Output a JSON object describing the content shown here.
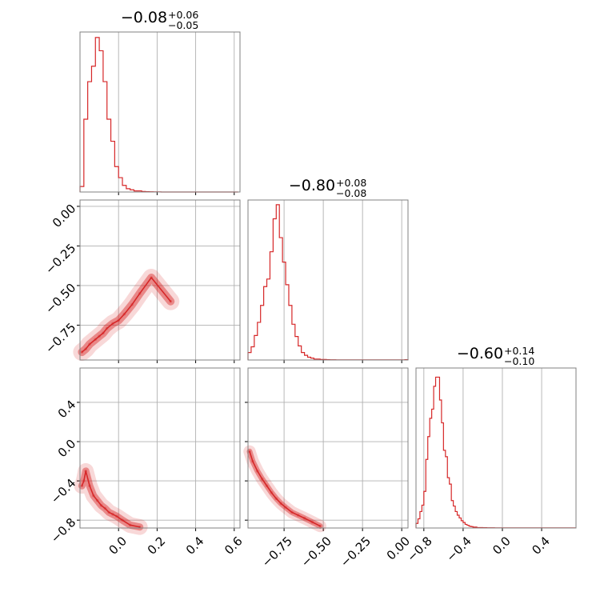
{
  "figure": {
    "type": "corner_plot"
  },
  "colors": {
    "series": "#d62728",
    "grid": "#b0b0b0",
    "spine": "#808080"
  },
  "chart_data": [
    {
      "type": "bar",
      "panel": "hist-0",
      "title": {
        "median": "−0.08",
        "plus": "+0.06",
        "minus": "−0.05"
      },
      "xlim": [
        -0.2,
        0.63
      ],
      "x": [
        -0.19,
        -0.17,
        -0.15,
        -0.13,
        -0.11,
        -0.09,
        -0.07,
        -0.05,
        -0.03,
        -0.01,
        0.01,
        0.03,
        0.05,
        0.07,
        0.09,
        0.11,
        0.13,
        0.15,
        0.17,
        0.19,
        0.21,
        0.23,
        0.25,
        0.27,
        0.29,
        0.31,
        0.33,
        0.35,
        0.37,
        0.39,
        0.41,
        0.43,
        0.45,
        0.47,
        0.49,
        0.51,
        0.53,
        0.55,
        0.57,
        0.59,
        0.61
      ],
      "values": [
        5,
        66,
        100,
        114,
        140,
        128,
        100,
        66,
        46,
        23,
        13,
        6,
        3,
        2,
        1,
        1,
        0.5,
        0.3,
        0.2,
        0.1,
        0.1,
        0,
        0,
        0,
        0,
        0,
        0,
        0,
        0,
        0,
        0,
        0,
        0,
        0,
        0,
        0,
        0,
        0,
        0,
        0,
        0
      ],
      "ylim": [
        0,
        145
      ],
      "grid_x": [
        0.0,
        0.2,
        0.4,
        0.6
      ]
    },
    {
      "type": "scatter",
      "panel": "scatter-1-0",
      "x": [
        -0.19,
        -0.17,
        -0.15,
        -0.12,
        -0.1,
        -0.08,
        -0.06,
        -0.03,
        0.0,
        0.03,
        0.07,
        0.11,
        0.17,
        0.27
      ],
      "y": [
        -0.92,
        -0.9,
        -0.87,
        -0.84,
        -0.82,
        -0.8,
        -0.77,
        -0.74,
        -0.72,
        -0.68,
        -0.62,
        -0.55,
        -0.45,
        -0.6
      ],
      "xlim": [
        -0.2,
        0.63
      ],
      "ylim": [
        -0.97,
        0.04
      ],
      "yticks": [
        "0.00",
        "−0.25",
        "−0.50",
        "−0.75"
      ],
      "ytick_values": [
        0.0,
        -0.25,
        -0.5,
        -0.75
      ]
    },
    {
      "type": "bar",
      "panel": "hist-1",
      "title": {
        "median": "−0.80",
        "plus": "+0.08",
        "minus": "−0.08"
      },
      "xlim": [
        -0.98,
        0.04
      ],
      "x": [
        -0.97,
        -0.95,
        -0.93,
        -0.91,
        -0.89,
        -0.87,
        -0.85,
        -0.83,
        -0.81,
        -0.79,
        -0.77,
        -0.75,
        -0.73,
        -0.71,
        -0.69,
        -0.67,
        -0.65,
        -0.63,
        -0.61,
        -0.59,
        -0.57,
        -0.55,
        -0.53,
        -0.51,
        -0.49,
        -0.47,
        -0.45,
        -0.43,
        -0.41,
        -0.39,
        -0.37,
        -0.35,
        -0.33,
        -0.31,
        -0.29,
        -0.27,
        -0.25,
        -0.23,
        -0.21,
        -0.19,
        -0.17,
        -0.15,
        -0.13,
        -0.11,
        -0.09,
        -0.07,
        -0.05,
        -0.03,
        -0.01,
        0.01,
        0.03
      ],
      "values": [
        8,
        14,
        26,
        40,
        58,
        78,
        86,
        115,
        150,
        165,
        130,
        104,
        80,
        58,
        38,
        25,
        15,
        8,
        5,
        3,
        2,
        1,
        1,
        0.5,
        0.5,
        0.3,
        0.2,
        0.2,
        0.1,
        0.1,
        0.1,
        0.1,
        0.1,
        0.1,
        0.1,
        0.1,
        0.1,
        0.1,
        0.1,
        0.1,
        0.1,
        0.1,
        0.1,
        0.1,
        0.1,
        0.1,
        0.1,
        0.1,
        0.1,
        0.1,
        0.3
      ],
      "ylim": [
        0,
        170
      ],
      "grid_x": [
        -0.75,
        -0.5,
        -0.25,
        0.0
      ]
    },
    {
      "type": "scatter",
      "panel": "scatter-2-0",
      "x": [
        -0.19,
        -0.18,
        -0.17,
        -0.15,
        -0.13,
        -0.11,
        -0.09,
        -0.07,
        -0.05,
        -0.03,
        -0.01,
        0.02,
        0.06,
        0.11
      ],
      "y": [
        -0.45,
        -0.4,
        -0.3,
        -0.45,
        -0.55,
        -0.6,
        -0.65,
        -0.68,
        -0.72,
        -0.74,
        -0.76,
        -0.8,
        -0.85,
        -0.87
      ],
      "xlim": [
        -0.2,
        0.63
      ],
      "ylim": [
        -0.88,
        0.75
      ],
      "xticks": [
        "0.0",
        "0.2",
        "0.4",
        "0.6"
      ],
      "xtick_values": [
        0.0,
        0.2,
        0.4,
        0.6
      ],
      "yticks": [
        "0.4",
        "0.0",
        "−0.4",
        "−0.8"
      ],
      "ytick_values": [
        0.4,
        0.0,
        -0.4,
        -0.8
      ]
    },
    {
      "type": "scatter",
      "panel": "scatter-2-1",
      "x": [
        -0.97,
        -0.95,
        -0.92,
        -0.89,
        -0.86,
        -0.83,
        -0.8,
        -0.77,
        -0.74,
        -0.7,
        -0.66,
        -0.62,
        -0.57,
        -0.52
      ],
      "y": [
        -0.1,
        -0.2,
        -0.3,
        -0.38,
        -0.45,
        -0.52,
        -0.58,
        -0.63,
        -0.67,
        -0.72,
        -0.75,
        -0.78,
        -0.82,
        -0.86
      ],
      "xlim": [
        -0.98,
        0.04
      ],
      "ylim": [
        -0.88,
        0.75
      ],
      "xticks": [
        "−0.75",
        "−0.50",
        "−0.25",
        "0.00"
      ],
      "xtick_values": [
        -0.75,
        -0.5,
        -0.25,
        0.0
      ]
    },
    {
      "type": "bar",
      "panel": "hist-2",
      "title": {
        "median": "−0.60",
        "plus": "+0.14",
        "minus": "−0.10"
      },
      "xlim": [
        -0.88,
        0.75
      ],
      "x": [
        -0.87,
        -0.85,
        -0.83,
        -0.81,
        -0.79,
        -0.77,
        -0.75,
        -0.73,
        -0.71,
        -0.69,
        -0.67,
        -0.65,
        -0.63,
        -0.61,
        -0.59,
        -0.57,
        -0.55,
        -0.53,
        -0.51,
        -0.49,
        -0.47,
        -0.45,
        -0.43,
        -0.41,
        -0.39,
        -0.37,
        -0.35,
        -0.33,
        -0.31,
        -0.29,
        -0.27,
        -0.25,
        -0.23,
        -0.21,
        -0.19,
        -0.17,
        -0.15,
        -0.13,
        -0.11,
        -0.09,
        -0.07,
        -0.05,
        -0.03,
        -0.01,
        0.01,
        0.03,
        0.05,
        0.07,
        0.09,
        0.11,
        0.13,
        0.15,
        0.17,
        0.19,
        0.21,
        0.23,
        0.25,
        0.27,
        0.29,
        0.31,
        0.33,
        0.35,
        0.37,
        0.39,
        0.41,
        0.43,
        0.45,
        0.47,
        0.49,
        0.51,
        0.53,
        0.55,
        0.57,
        0.59,
        0.61,
        0.63,
        0.65,
        0.67,
        0.69,
        0.71,
        0.73
      ],
      "values": [
        5,
        10,
        18,
        25,
        40,
        75,
        100,
        120,
        130,
        155,
        165,
        165,
        140,
        115,
        85,
        78,
        55,
        48,
        30,
        24,
        18,
        14,
        11,
        8,
        6,
        4,
        3,
        2,
        1.5,
        1,
        1,
        0.5,
        0.5,
        0.5,
        0.3,
        0.3,
        0.2,
        0.2,
        0.2,
        0.2,
        0.1,
        0.1,
        0.1,
        0.1,
        0.1,
        0.1,
        0.1,
        0.1,
        0.1,
        0.1,
        0.1,
        0.1,
        0.1,
        0.1,
        0.1,
        0.1,
        0.1,
        0.1,
        0.1,
        0.1,
        0.1,
        0.1,
        0.1,
        0.1,
        0.1,
        0.1,
        0.1,
        0.1,
        0.1,
        0.1,
        0.1,
        0.1,
        0.1,
        0.1,
        0.1,
        0.1,
        0.1,
        0.1,
        0.1,
        0.1,
        0.1
      ],
      "ylim": [
        0,
        175
      ],
      "xticks": [
        "−0.8",
        "−0.4",
        "0.0",
        "0.4"
      ],
      "xtick_values": [
        -0.8,
        -0.4,
        0.0,
        0.4
      ]
    }
  ]
}
